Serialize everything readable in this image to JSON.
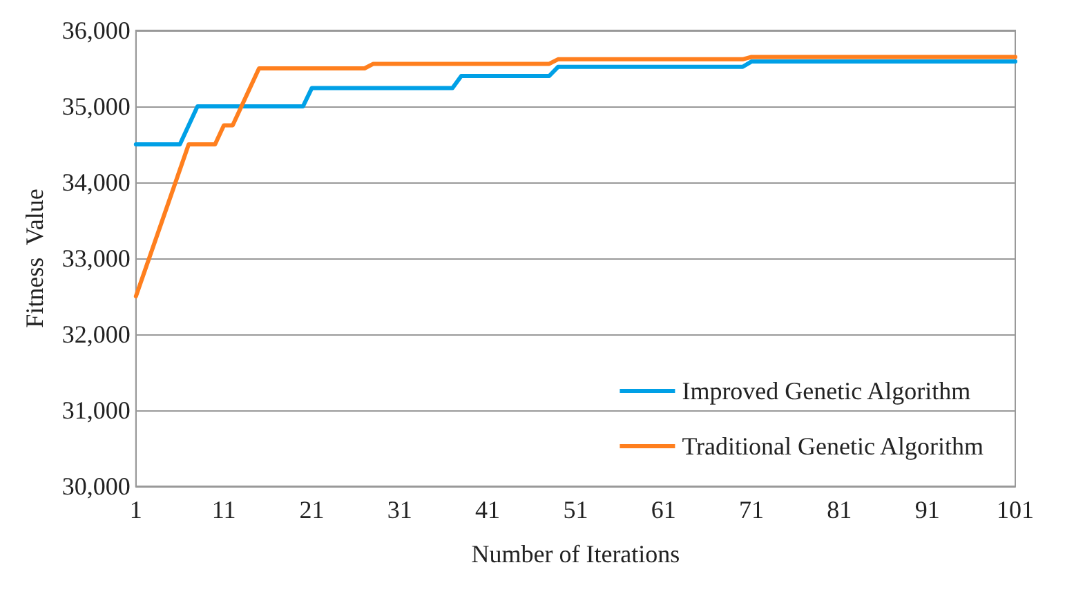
{
  "chart_data": {
    "type": "line",
    "xlabel": "Number of Iterations",
    "ylabel": "Fitness  Value",
    "xlim": [
      1,
      101
    ],
    "xticks": [
      1,
      11,
      21,
      31,
      41,
      51,
      61,
      71,
      81,
      91,
      101
    ],
    "ylim": [
      30000,
      36000
    ],
    "yticks": [
      {
        "value": 30000,
        "label": "30,000"
      },
      {
        "value": 31000,
        "label": "31,000"
      },
      {
        "value": 32000,
        "label": "32,000"
      },
      {
        "value": 33000,
        "label": "33,000"
      },
      {
        "value": 34000,
        "label": "34,000"
      },
      {
        "value": 35000,
        "label": "35,000"
      },
      {
        "value": 36000,
        "label": "36,000"
      }
    ],
    "grid": "y",
    "legend": "bottom right",
    "marker": "none",
    "line_style": "solid",
    "series": [
      {
        "name": "Improved Genetic Algorithm",
        "color": "#00a0e6",
        "x": [
          1,
          6,
          8,
          20,
          21,
          37,
          38,
          48,
          49,
          70,
          71,
          101
        ],
        "values": [
          34500,
          34500,
          35000,
          35000,
          35240,
          35240,
          35400,
          35400,
          35520,
          35520,
          35590,
          35590
        ]
      },
      {
        "name": "Traditional Genetic Algorithm",
        "color": "#ff7f1e",
        "x": [
          1,
          7,
          10,
          11,
          12,
          15,
          27,
          28,
          48,
          49,
          70,
          71,
          101
        ],
        "values": [
          32500,
          34500,
          34500,
          34750,
          34750,
          35500,
          35500,
          35560,
          35560,
          35620,
          35620,
          35650,
          35650
        ]
      }
    ]
  }
}
